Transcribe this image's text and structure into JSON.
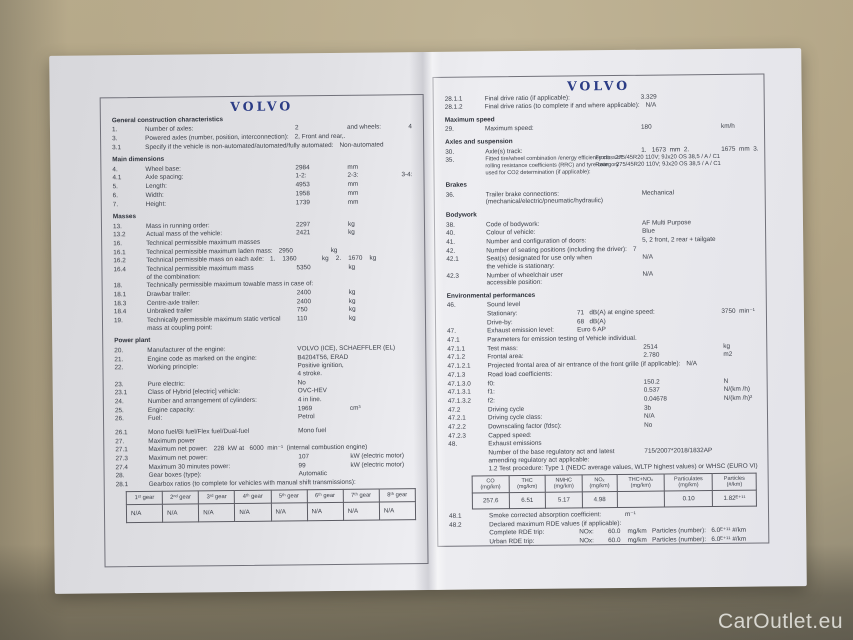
{
  "brand": {
    "logo": "VOLVO",
    "color": "#2b3c85"
  },
  "watermark": "CarOutlet.eu",
  "left_page": {
    "sections": [
      {
        "title": "General construction characteristics",
        "rows": [
          {
            "n": "1.",
            "t": "Number of axles:",
            "v": "2",
            "u": "and wheels:",
            "fr": "4"
          },
          {
            "n": "3.",
            "nw": 1,
            "t": "Powered axles (number, position, interconnection):",
            "v": "2, Front and rear,."
          },
          {
            "n": "3.1",
            "nw": 1,
            "t": "Specify if the vehicle is non-automated/automated/fully automated:",
            "v": "Non-automated"
          }
        ]
      },
      {
        "title": "Main dimensions",
        "rows": [
          {
            "n": "4.",
            "t": "Wheel base:",
            "v": "2984",
            "u": "mm"
          },
          {
            "n": "4.1",
            "t": "Axle spacing:",
            "v": "1-2:",
            "u": "2-3:",
            "fr": "3-4:"
          },
          {
            "n": "5.",
            "t": "Length:",
            "v": "4953",
            "u": "mm"
          },
          {
            "n": "6.",
            "t": "Width:",
            "v": "1958",
            "u": "mm"
          },
          {
            "n": "7.",
            "t": "Height:",
            "v": "1739",
            "u": "mm"
          }
        ]
      },
      {
        "title": "Masses",
        "rows": [
          {
            "n": "13.",
            "t": "Mass in running order:",
            "v": "2297",
            "u": "kg"
          },
          {
            "n": "13.2",
            "t": "Actual mass of the vehicle:",
            "v": "2421",
            "u": "kg"
          },
          {
            "n": "16.",
            "nw": 1,
            "t": "Technical permissible maximum masses"
          },
          {
            "n": "16.1",
            "nw": 1,
            "t": "Technical permissible maximum laden mass:",
            "v": "2950",
            "u": "kg"
          },
          {
            "n": "16.2",
            "nw": 1,
            "t": "Technical permissible mass on each axle:",
            "v": "1.    1360",
            "u": "kg    2.    1670    kg"
          },
          {
            "n": "16.4",
            "t": "Technical permissible maximum mass\nof the combination:",
            "v": "5350",
            "u": "kg"
          },
          {
            "n": "18.",
            "nw": 1,
            "t": "Technically permissible maximum towable mass in case of:"
          },
          {
            "n": "18.1",
            "t": "Drawbar trailer:",
            "v": "2400",
            "u": "kg"
          },
          {
            "n": "18.3",
            "t": "Centre-axle trailer:",
            "v": "2400",
            "u": "kg"
          },
          {
            "n": "18.4",
            "t": "Unbraked trailer",
            "v": "750",
            "u": "kg"
          },
          {
            "n": "19.",
            "t": "Technically permissible maximum static vertical\nmass at coupling point:",
            "v": "110",
            "u": "kg"
          }
        ]
      },
      {
        "title": "Power plant",
        "rows": [
          {
            "n": "20.",
            "t": "Manufacturer of the engine:",
            "v": "VOLVO (ICE), SCHAEFFLER (EL)"
          },
          {
            "n": "21.",
            "t": "Engine code as marked on the engine:",
            "v": "B4204T56, ERAD"
          },
          {
            "n": "22.",
            "t": "Working principle:",
            "v": "Positive ignition,\n4 stroke."
          },
          {
            "n": "23.",
            "t": "Pure electric:",
            "v": "No"
          },
          {
            "n": "23.1",
            "t": "Class of Hybrid [electric] vehicle:",
            "v": "OVC-HEV"
          },
          {
            "n": "24.",
            "t": "Number and arrangement of cylinders:",
            "v": "4 in line."
          },
          {
            "n": "25.",
            "t": "Engine capacity:",
            "v": "1969",
            "u": "cm³"
          },
          {
            "n": "26.",
            "t": "Fuel:",
            "v": "Petrol"
          },
          {
            "n": "26.1",
            "gap": 1,
            "t": "Mono fuel/Bi fuel/Flex fuel/Dual-fuel",
            "v": "Mono fuel"
          },
          {
            "n": "27.",
            "t": "Maximum power"
          },
          {
            "n": "27.1",
            "nw": 1,
            "t": "Maximum net power:",
            "v": "228  kW at   6000  min⁻¹  (internal combustion engine)"
          },
          {
            "n": "27.3",
            "t": "Maximum net power:",
            "v": "107",
            "u": "kW (electric motor)"
          },
          {
            "n": "27.4",
            "t": "Maximum 30 minutes power:",
            "v": "99",
            "u": "kW (electric motor)"
          },
          {
            "n": "28.",
            "t": "Gear boxes (type):",
            "v": "Automatic"
          },
          {
            "n": "28.1",
            "nw": 1,
            "t": "Gearbox ratios (to complete for vehicles with manual shift transmissions):"
          }
        ]
      }
    ],
    "gear_table": {
      "headers": [
        "1ˢᵗ gear",
        "2ⁿᵈ gear",
        "3ʳᵈ gear",
        "4ᵗʰ gear",
        "5ᵗʰ gear",
        "6ᵗʰ gear",
        "7ᵗʰ gear",
        "8ᵗʰ gear"
      ],
      "values": [
        "N/A",
        "N/A",
        "N/A",
        "N/A",
        "N/A",
        "N/A",
        "N/A",
        "N/A"
      ]
    }
  },
  "right_page": {
    "sections_top": [
      {
        "rows": [
          {
            "n": "28.1.1",
            "t": "Final drive ratio (if applicable):",
            "v": "3.329"
          },
          {
            "n": "28.1.2",
            "nw": 1,
            "t": "Final drive ratios (to complete if and where applicable):",
            "v": "N/A"
          }
        ]
      },
      {
        "title": "Maximum speed",
        "rows": [
          {
            "n": "29.",
            "t": "Maximum speed:",
            "v": "180",
            "u": "km/h"
          }
        ]
      },
      {
        "title": "Axles and suspension",
        "rows": [
          {
            "n": "30.",
            "t": "Axle(s) track:",
            "v": "1.   1673  mm  2.",
            "u": "1675  mm  3."
          },
          {
            "n": "35.",
            "sm": 1,
            "t": "Fitted tire/wheel combination /energy efficiency class of\nrolling resistance coefficients (RRC) and tyre category\nused for CO2 determination (if applicable):",
            "v": "Front:   275/45R20 110V; 9Jx20 OS 38,5 / A / C1\nRear:    275/45R20 110V; 9Jx20 OS 38,5 / A / C1",
            "vc": "pull1 sm"
          }
        ]
      },
      {
        "title": "Brakes",
        "rows": [
          {
            "n": "36.",
            "t": "Trailer brake connections:\n(mechanical/electric/pneumatic/hydraulic)",
            "v": "Mechanical"
          }
        ]
      },
      {
        "title": "Bodywork",
        "rows": [
          {
            "n": "38.",
            "t": "Code of bodywork:",
            "v": "AF Multi Purpose"
          },
          {
            "n": "40.",
            "t": "Colour of vehicle:",
            "v": "Blue"
          },
          {
            "n": "41.",
            "t": "Number and configuration of doors:",
            "v": "5, 2 front, 2 rear + tailgate"
          },
          {
            "n": "42.",
            "nw": 1,
            "t": "Number of seating positions (including the driver):",
            "v": "7"
          },
          {
            "n": "42.1",
            "t": "Seat(s) designated for use only when\nthe vehicle is stationary:",
            "v": "N/A"
          },
          {
            "n": "42.3",
            "t": "Number of wheelchair user\naccessible position:",
            "v": "N/A"
          }
        ]
      },
      {
        "title": "Environmental performances",
        "rows": [
          {
            "n": "46.",
            "t": "Sound level"
          },
          {
            "n": "",
            "t": "Stationary:",
            "v": "71   dB(A) at engine speed:",
            "vc": "pull2",
            "fr": "3750  min⁻¹"
          },
          {
            "n": "",
            "t": "Drive-by:",
            "v": "68   dB(A)",
            "vc": "pull2"
          },
          {
            "n": "47.",
            "t": "Exhaust emission level:",
            "v": "Euro 6 AP",
            "vc": "pull2"
          },
          {
            "n": "47.1",
            "nw": 1,
            "t": "Parameters for emission testing of Vehicle individual."
          },
          {
            "n": "47.1.1",
            "t": "Test mass:",
            "v": "2514",
            "u": "kg"
          },
          {
            "n": "47.1.2",
            "t": "Frontal area:",
            "v": "2.780",
            "u": "m2"
          },
          {
            "n": "47.1.2.1",
            "nw": 1,
            "t": "Projected frontal area of air entrance of the front grille (if applicable):",
            "v": "N/A"
          },
          {
            "n": "47.1.3",
            "t": "Road load coefficients:"
          },
          {
            "n": "47.1.3.0",
            "t": "f0:",
            "v": "150.2",
            "u": "N"
          },
          {
            "n": "47.1.3.1",
            "t": "f1:",
            "v": "0.537",
            "u": "N/(km /h)"
          },
          {
            "n": "47.1.3.2",
            "t": "f2:",
            "v": "0.04678",
            "u": "N/(km /h)²"
          },
          {
            "n": "47.2",
            "t": "Driving cycle",
            "v": "3b"
          },
          {
            "n": "47.2.1",
            "t": "Driving cycle class:",
            "v": "N/A"
          },
          {
            "n": "47.2.2",
            "t": "Downscaling factor (fdsc):",
            "v": "No"
          },
          {
            "n": "47.2.3",
            "t": "Capped speed:"
          },
          {
            "n": "48.",
            "t": "Exhaust emissions"
          },
          {
            "n": "",
            "t": "Number of the base regulatory act and latest\namending regulatory act applicable:",
            "v": "715/2007*2018/1832AP"
          },
          {
            "n": "",
            "nw": 1,
            "t": "1.2 Test procedure: Type 1 (NEDC average values, WLTP highest values) or WHSC (EURO VI)"
          }
        ]
      }
    ],
    "emissions_table": {
      "headers": [
        "CO\n(mg/km)",
        "THC\n(mg/km)",
        "NMHC\n(mg/km)",
        "NOₓ\n(mg/km)",
        "THC+NOₓ\n(mg/km)",
        "Particulates\n(mg/km)",
        "Particles\n(#/km)"
      ],
      "values": [
        "257.6",
        "6.51",
        "5.17",
        "4.98",
        "",
        "0.10",
        "1.82ᴱ⁺¹¹"
      ]
    },
    "sections_bottom": [
      {
        "rows": [
          {
            "n": "48.1",
            "nw": 1,
            "t": "Smoke corrected absorption coefficient:",
            "v": "          m⁻¹"
          },
          {
            "n": "48.2",
            "nw": 1,
            "t": "Declared maximum RDE values (if applicable):"
          },
          {
            "n": "",
            "t": "Complete RDE trip:",
            "v": "NOx:        60.0    mg/km   Particles (number):   6.0ᴱ⁺¹¹ #/km",
            "vc": "pull2"
          },
          {
            "n": "",
            "t": "Urban RDE trip:",
            "v": "NOx:        60.0    mg/km   Particles (number):   6.0ᴱ⁺¹¹ #/km",
            "vc": "pull2"
          }
        ]
      }
    ]
  }
}
